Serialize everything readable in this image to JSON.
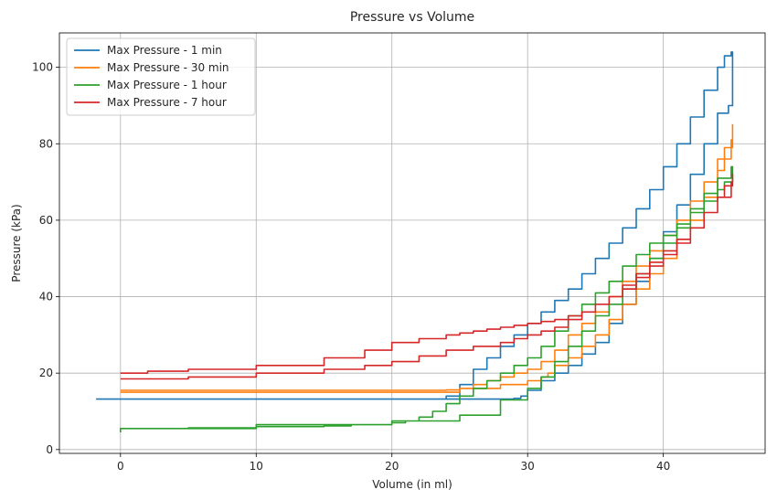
{
  "chart_data": {
    "type": "line",
    "title": "Pressure vs Volume",
    "xlabel": "Volume (in ml)",
    "ylabel": "Pressure (kPa)",
    "xlim": [
      -4.5,
      47.5
    ],
    "ylim": [
      -1,
      109
    ],
    "xticks": [
      0,
      10,
      20,
      30,
      40
    ],
    "yticks": [
      0,
      20,
      40,
      60,
      80,
      100
    ],
    "grid": true,
    "legend": "top-left",
    "series": [
      {
        "name": "Max Pressure - 1 min",
        "color": "#1f77b4",
        "x": [
          -1.8,
          0,
          10,
          19.5,
          20,
          24,
          25,
          26,
          27,
          28,
          29,
          30,
          31,
          32,
          33,
          34,
          35,
          36,
          37,
          38,
          39,
          40,
          41,
          42,
          43,
          44,
          44.5,
          45,
          45.1,
          45.1,
          44.8,
          44,
          43,
          42,
          41,
          40,
          39,
          38,
          37,
          36,
          35,
          34,
          33,
          32,
          31,
          30,
          29.5,
          29,
          20,
          10,
          0
        ],
        "y": [
          13.2,
          13.2,
          13.2,
          13.2,
          13.2,
          14,
          17,
          21,
          24,
          27,
          30,
          33,
          36,
          39,
          42,
          46,
          50,
          54,
          58,
          63,
          68,
          74,
          80,
          87,
          94,
          100,
          103,
          104,
          103,
          90,
          88,
          80,
          72,
          64,
          57,
          50,
          44,
          38,
          33,
          28,
          25,
          22,
          20,
          18,
          15.5,
          14,
          13.4,
          13.2,
          13.2,
          13.2,
          13.2
        ]
      },
      {
        "name": "Max Pressure - 30 min",
        "color": "#ff7f0e",
        "x": [
          0,
          10,
          18,
          20,
          24,
          25,
          26,
          27,
          28,
          29,
          30,
          31,
          32,
          33,
          34,
          35,
          36,
          37,
          38,
          39,
          40,
          41,
          42,
          43,
          44,
          45,
          45.1,
          45.1,
          44.5,
          44,
          43,
          42,
          41,
          40,
          39,
          38,
          37,
          36,
          35,
          34,
          33,
          32,
          31.5,
          31,
          30,
          28,
          25,
          20,
          10,
          0
        ],
        "y": [
          15.5,
          15.5,
          15.5,
          15.5,
          15.6,
          16,
          17,
          18,
          19,
          20,
          21,
          23,
          26,
          30,
          33,
          36,
          40,
          44,
          48,
          52,
          56,
          60,
          65,
          70,
          76,
          81,
          85,
          79,
          73,
          66,
          60,
          55,
          50,
          46,
          42,
          38,
          34,
          30,
          27,
          24,
          22,
          20,
          19,
          18,
          17,
          16,
          15,
          15,
          15,
          15
        ]
      },
      {
        "name": "Max Pressure - 1 hour",
        "color": "#2ca02c",
        "x": [
          1,
          5,
          10,
          15,
          17,
          20,
          21,
          22,
          23,
          24,
          25,
          26,
          27,
          28,
          29,
          30,
          31,
          32,
          33,
          34,
          35,
          36,
          37,
          38,
          39,
          40,
          41,
          42,
          43,
          44,
          45,
          45.1,
          45.1,
          44.5,
          44,
          43,
          42,
          41,
          40,
          39,
          38,
          37,
          36,
          35,
          34,
          33,
          32,
          31,
          30,
          28,
          25,
          20,
          10,
          0
        ],
        "y": [
          5.5,
          5.7,
          6,
          6.2,
          6.5,
          7,
          7.5,
          8.5,
          10,
          12,
          14,
          16,
          18,
          20,
          22,
          24,
          27,
          31,
          35,
          38,
          41,
          44,
          48,
          51,
          54,
          56,
          59,
          63,
          67,
          71,
          74,
          73,
          70,
          68,
          65,
          62,
          58,
          54,
          50,
          46,
          42,
          38,
          35,
          31,
          27,
          23,
          19,
          16,
          13,
          9,
          7.5,
          6.5,
          5.5,
          4.5
        ]
      },
      {
        "name": "Max Pressure - 7 hour",
        "color": "#d62728",
        "x": [
          0,
          2,
          5,
          10,
          15,
          18,
          20,
          22,
          24,
          25,
          26,
          27,
          28,
          29,
          30,
          31,
          32,
          33,
          34,
          35,
          36,
          37,
          38,
          39,
          40,
          41,
          42,
          43,
          44,
          45,
          45.1,
          45.1,
          44.5,
          44,
          43,
          42,
          41,
          40,
          39,
          38,
          37,
          36,
          35,
          34,
          33,
          32,
          31,
          30,
          29,
          28,
          26,
          24,
          22,
          20,
          18,
          15,
          10,
          5,
          0
        ],
        "y": [
          20,
          20.5,
          21,
          22,
          24,
          26,
          28,
          29,
          30,
          30.5,
          31,
          31.5,
          32,
          32.5,
          33,
          33.5,
          34,
          35,
          36,
          38,
          40,
          43,
          46,
          49,
          52,
          55,
          58,
          62,
          66,
          70,
          72,
          69,
          66,
          62,
          58,
          54,
          51,
          48,
          45,
          42,
          40,
          38,
          36,
          34,
          32,
          31,
          30,
          29,
          28,
          27,
          26,
          24.5,
          23,
          22,
          21,
          20,
          19,
          18.5,
          18.5
        ]
      }
    ]
  }
}
